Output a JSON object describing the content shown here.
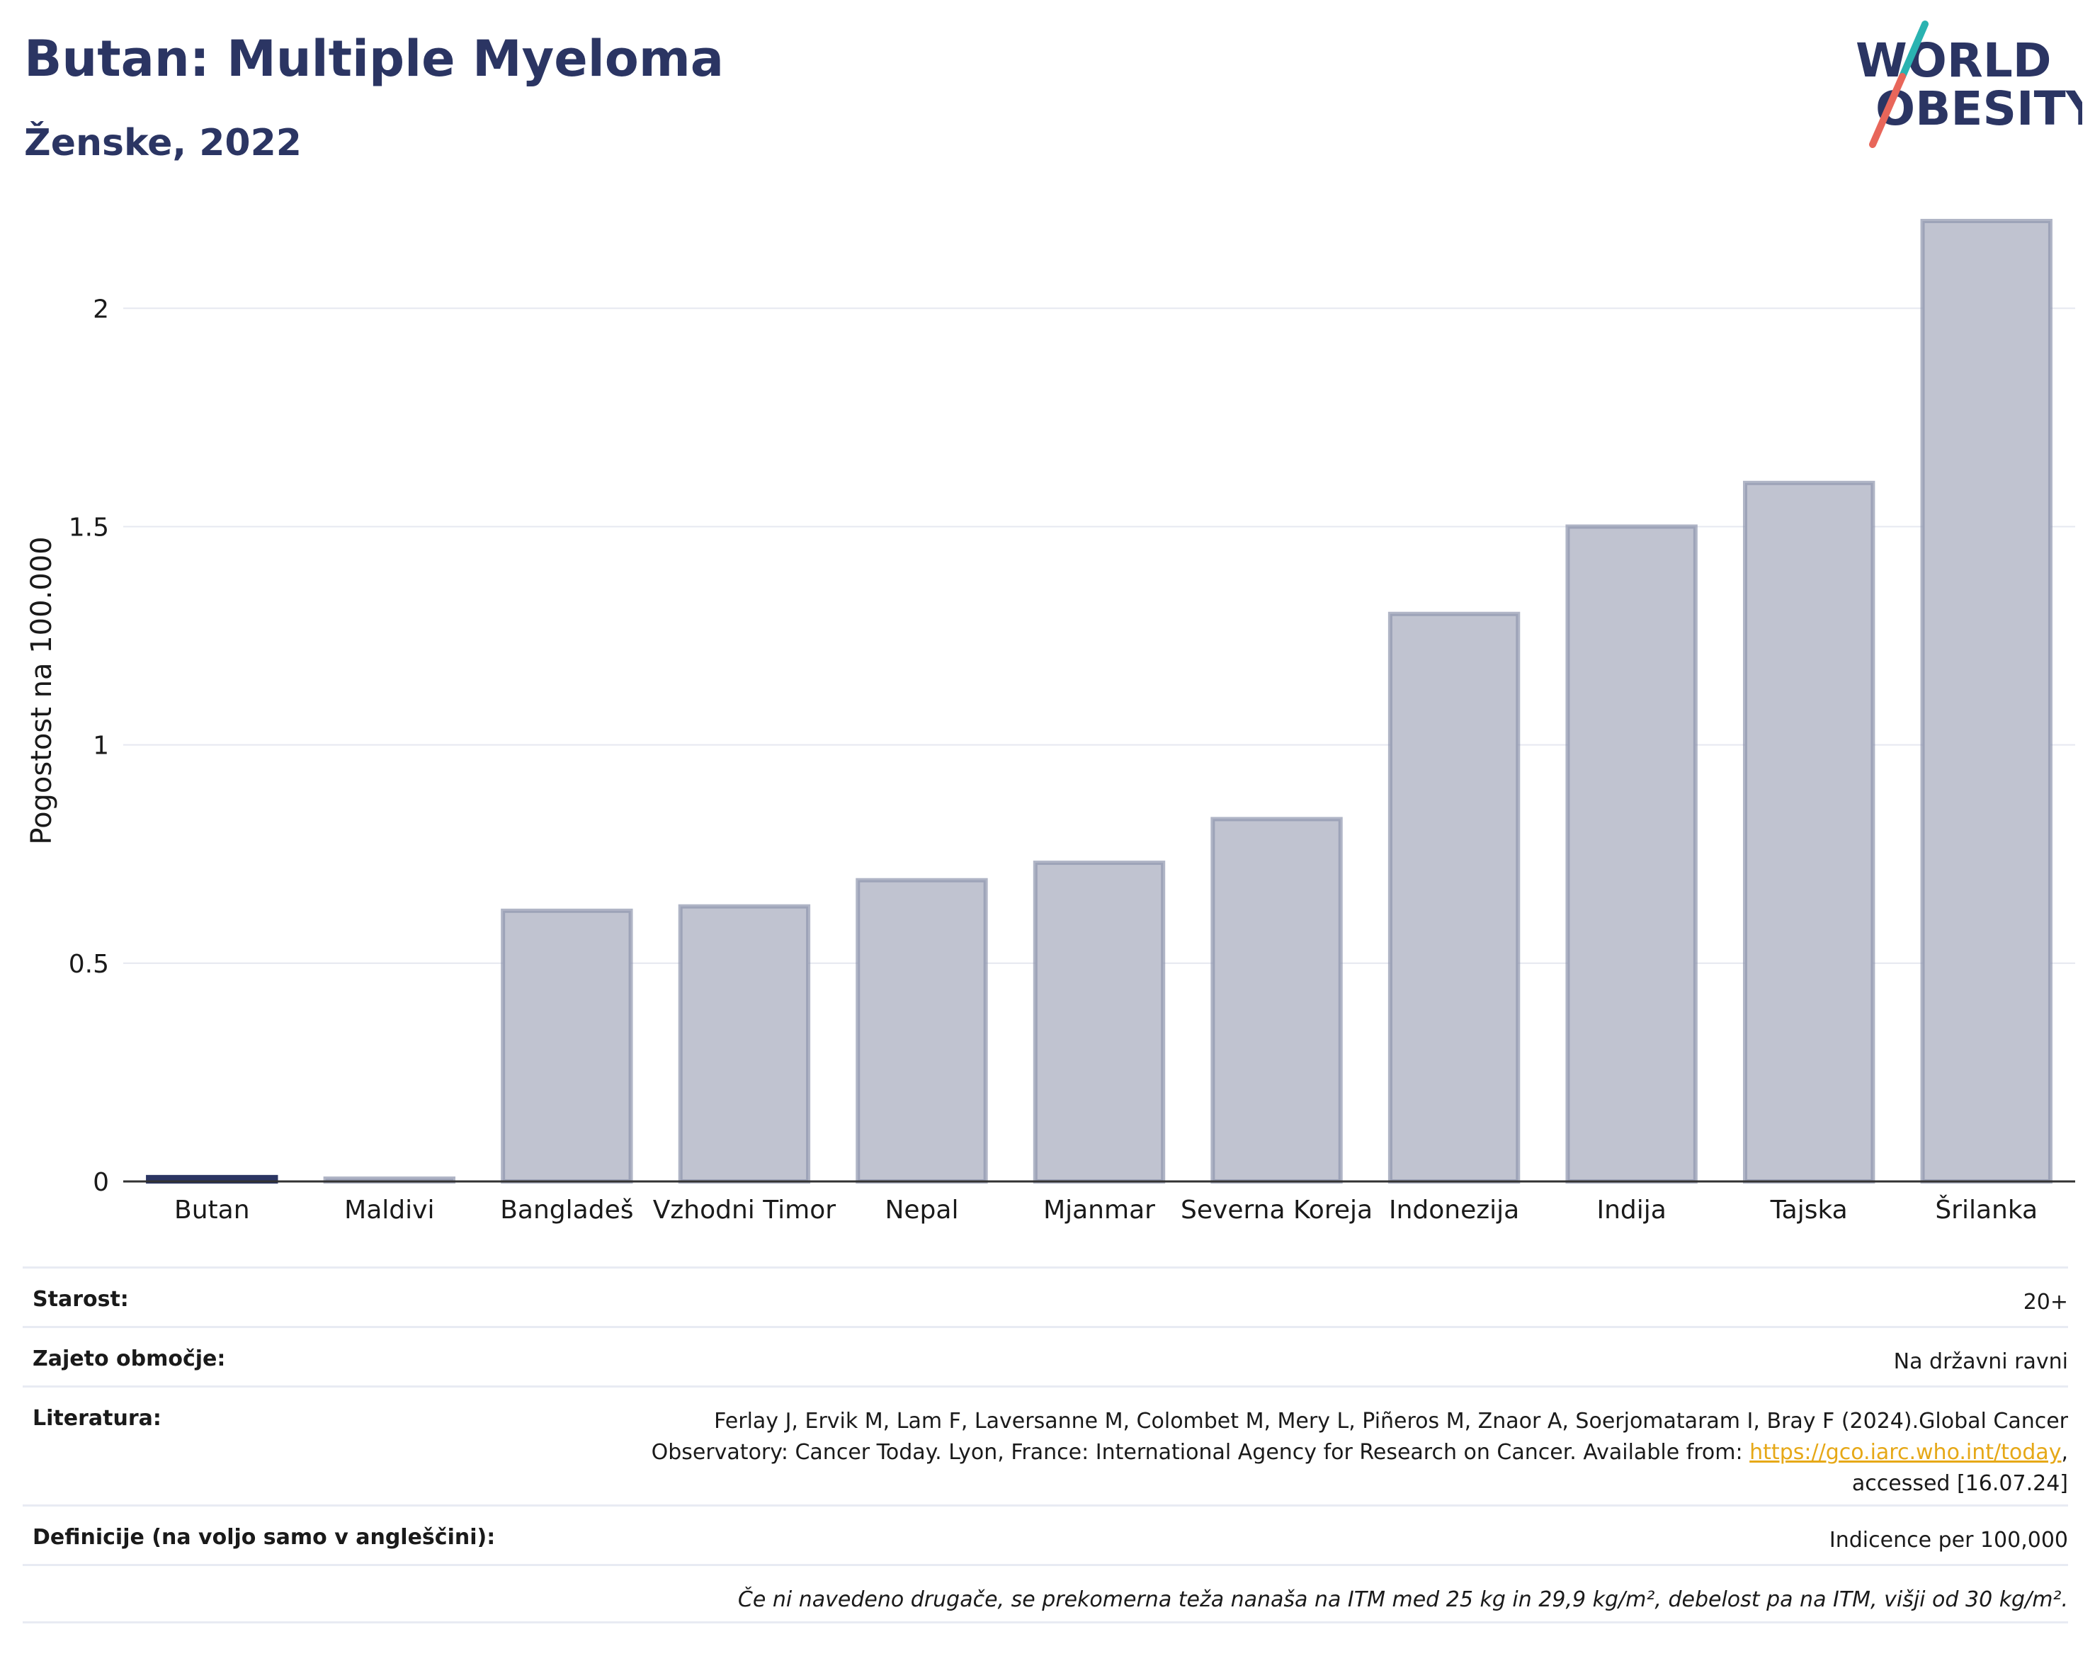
{
  "header": {
    "title": "Butan: Multiple Myeloma",
    "subtitle": "Ženske, 2022"
  },
  "logo": {
    "line1": "WORLD",
    "line2": "OBESITY",
    "accent_teal": "#2ab3b1",
    "accent_red": "#e8665a",
    "text_color": "#2b3563"
  },
  "chart_data": {
    "type": "bar",
    "categories": [
      "Butan",
      "Maldivi",
      "Bangladeš",
      "Vzhodni Timor",
      "Nepal",
      "Mjanmar",
      "Severna Koreja",
      "Indonezija",
      "Indija",
      "Tajska",
      "Šrilanka"
    ],
    "values": [
      0.01,
      0.0,
      0.62,
      0.63,
      0.69,
      0.73,
      0.83,
      1.3,
      1.5,
      1.6,
      2.2
    ],
    "highlight": "Butan",
    "ylabel": "Pogostost na 100.000",
    "xlabel": "",
    "ylim": [
      0,
      2.2
    ],
    "yticks": [
      0,
      0.5,
      1,
      1.5,
      2
    ],
    "ytick_labels": [
      "0",
      "0.5",
      "1",
      "1.5",
      "2"
    ],
    "grid": true,
    "colors": {
      "bar_fill": "#c0c3d0",
      "bar_stroke": "#8e95ae",
      "highlight": "#2b3563",
      "grid": "#e6e8f0",
      "axis": "#333333"
    }
  },
  "meta": {
    "age_label": "Starost:",
    "age_value": "20+",
    "area_label": "Zajeto območje:",
    "area_value": "Na državni ravni",
    "ref_label": "Literatura:",
    "ref_line1": "Ferlay J, Ervik M, Lam F, Laversanne M, Colombet M, Mery L, Piñeros M, Znaor A, Soerjomataram I, Bray F (2024).Global Cancer",
    "ref_line2_pre": "Observatory: Cancer Today. Lyon, France: International Agency for Research on Cancer. Available from: ",
    "ref_link": "https://gco.iarc.who.int/today",
    "ref_line2_post": ",",
    "ref_line3": "accessed [16.07.24]",
    "def_label": "Definicije (na voljo samo v angleščini):",
    "def_value": "Indicence per 100,000",
    "note": "Če ni navedeno drugače, se prekomerna teža nanaša na ITM med 25 kg in 29,9 kg/m², debelost pa na ITM, višji od 30 kg/m²."
  }
}
